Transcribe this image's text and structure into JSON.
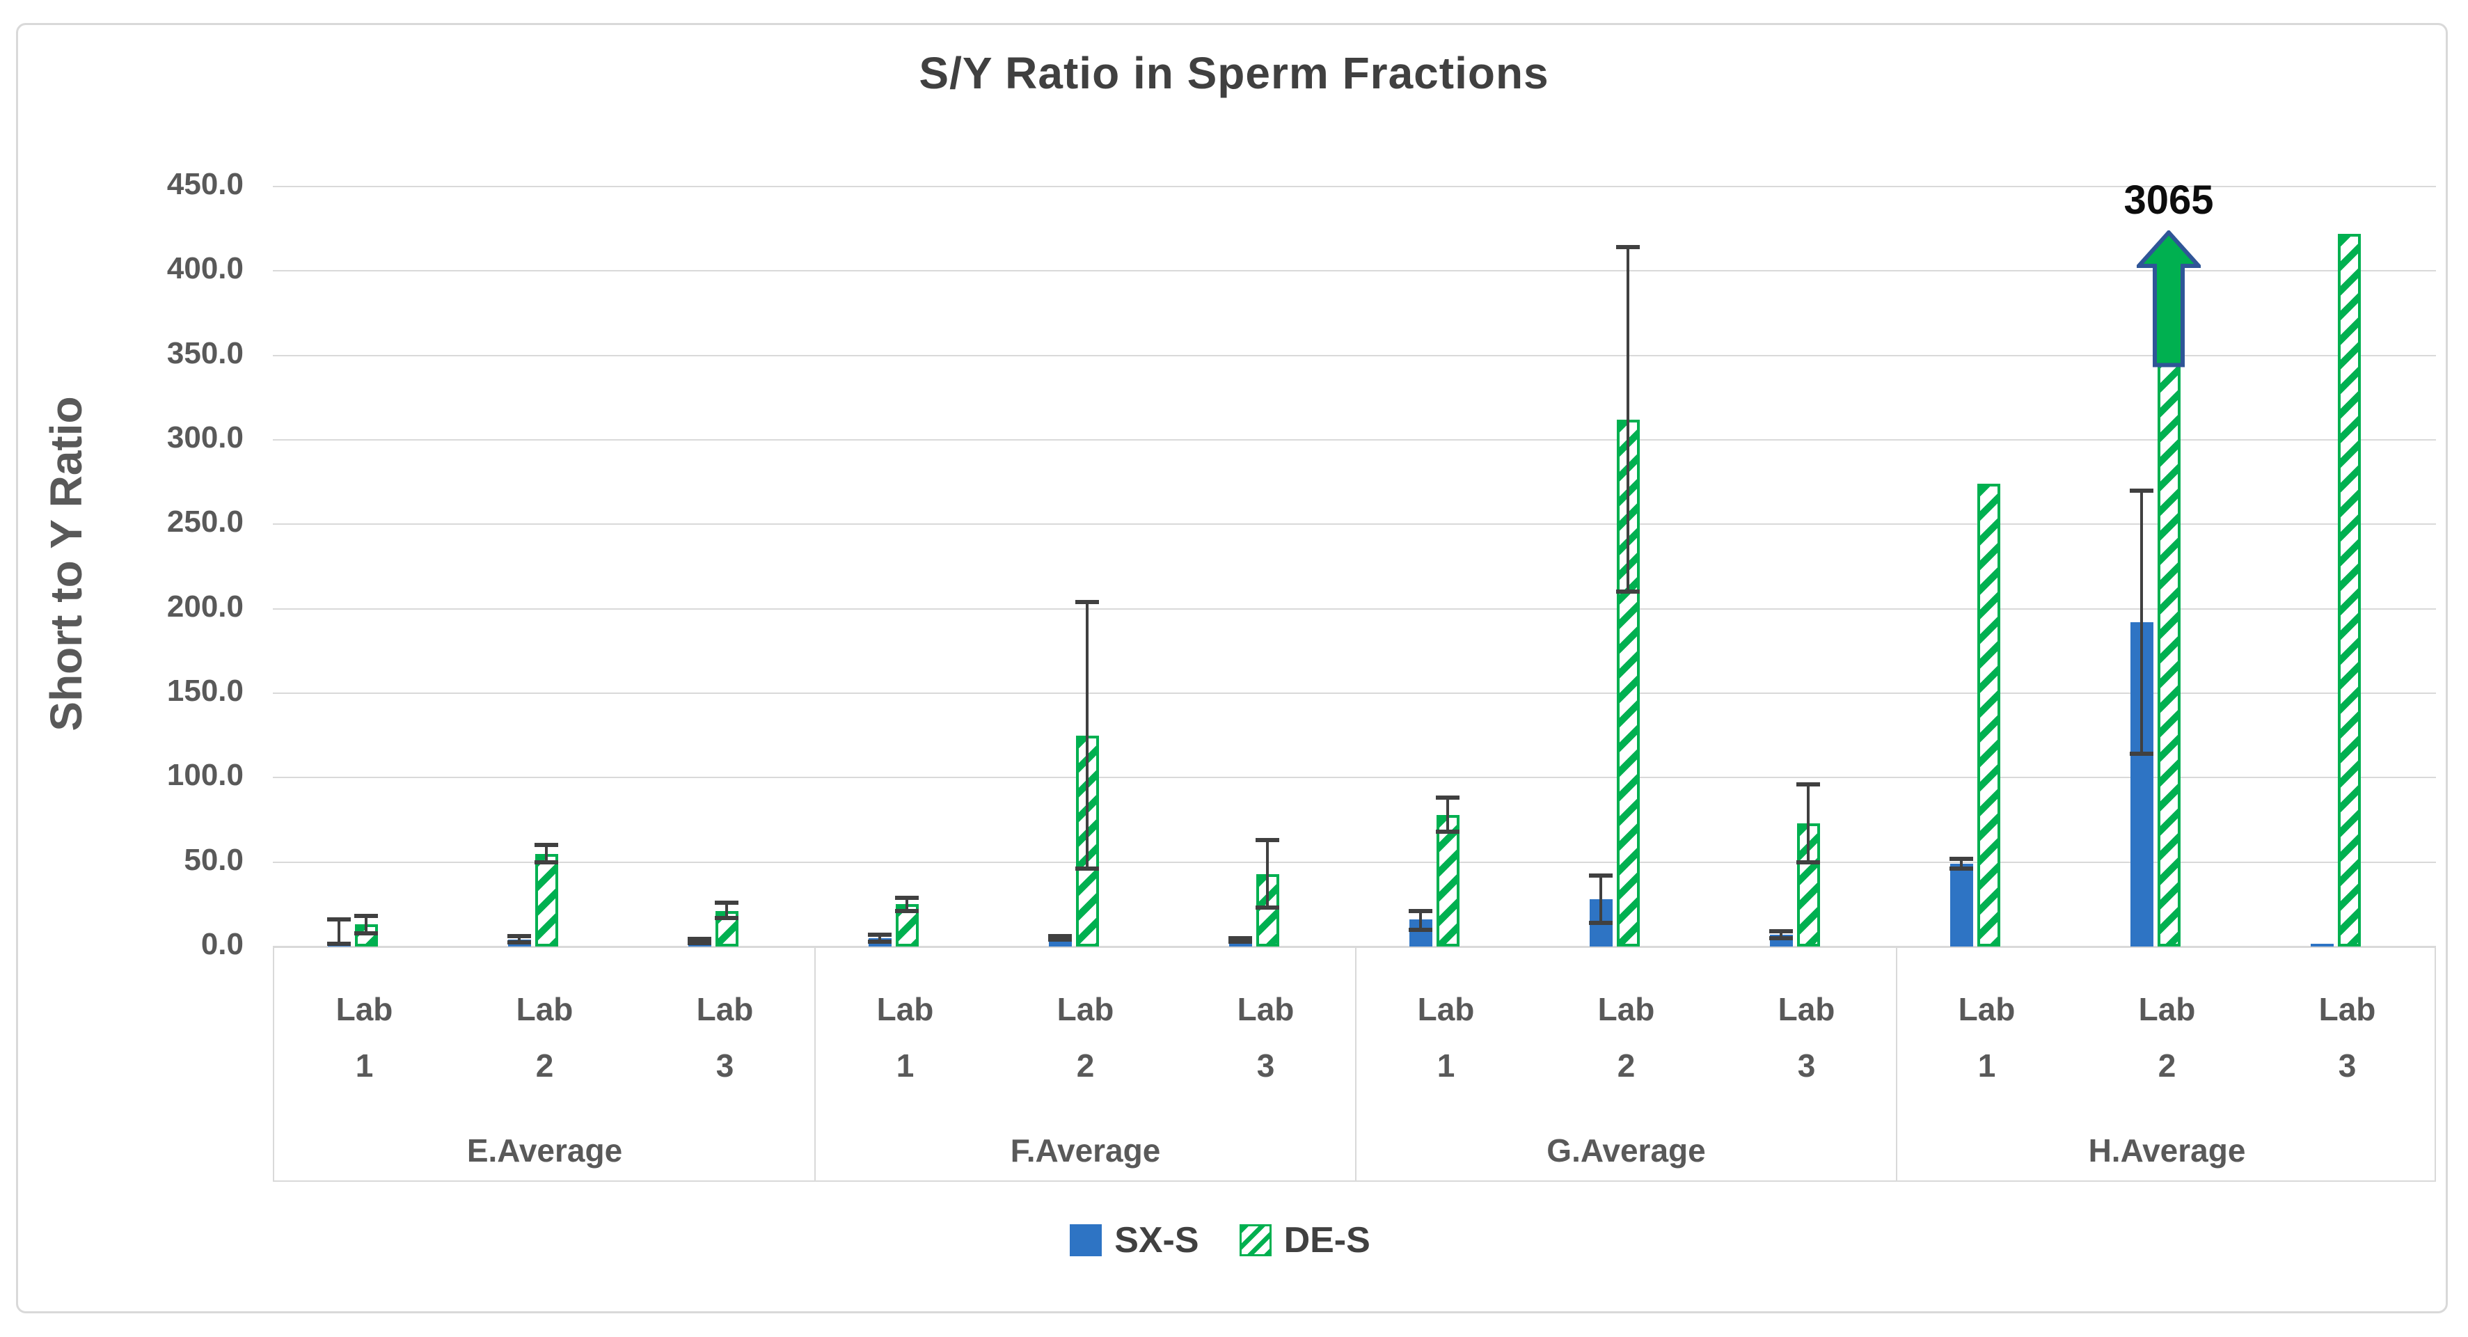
{
  "window": {
    "background_color": "#FFFFFF",
    "frame_border_color": "#D9D9D9"
  },
  "chart_data": {
    "type": "bar",
    "title": "S/Y Ratio in Sperm Fractions",
    "xlabel": "",
    "ylabel": "Short to Y Ratio",
    "ylim": [
      0,
      450
    ],
    "ytick_step": 50,
    "ytick_labels": [
      "0.0",
      "50.0",
      "100.0",
      "150.0",
      "200.0",
      "250.0",
      "300.0",
      "350.0",
      "400.0",
      "450.0"
    ],
    "grid": true,
    "gridline_color": "#D9D9D9",
    "legend_position": "bottom",
    "group_labels": [
      "E.Average",
      "F.Average",
      "G.Average",
      "H.Average"
    ],
    "lab_labels": [
      "Lab 1",
      "Lab 2",
      "Lab 3"
    ],
    "categories": [
      "Lab 1",
      "Lab 2",
      "Lab 3",
      "Lab 1",
      "Lab 2",
      "Lab 3",
      "Lab 1",
      "Lab 2",
      "Lab 3",
      "Lab 1",
      "Lab 2",
      "Lab 3"
    ],
    "series": [
      {
        "name": "SX-S",
        "style": "solid",
        "color": "#2E74C4",
        "values": [
          3,
          4,
          3,
          5,
          5,
          4,
          16,
          28,
          7,
          49,
          192,
          1.5
        ],
        "err_hi": [
          16,
          6,
          4.5,
          7,
          6,
          5,
          21,
          42,
          9,
          52,
          270,
          null
        ],
        "err_lo": [
          1.5,
          2.5,
          2,
          3,
          4,
          3,
          10,
          14,
          5,
          46,
          114,
          null
        ]
      },
      {
        "name": "DE-S",
        "style": "hatched",
        "color": "#00B050",
        "values": [
          13,
          55,
          21,
          25,
          125,
          43,
          78,
          312,
          73,
          274,
          3065,
          422
        ],
        "err_hi": [
          18,
          60,
          26,
          29,
          204,
          63,
          88,
          414,
          96,
          null,
          null,
          null
        ],
        "err_lo": [
          8,
          50,
          17,
          21,
          46,
          23,
          68,
          210,
          50,
          null,
          null,
          null
        ]
      }
    ],
    "error_bar_color": "#404040",
    "annotation": {
      "text": "3065",
      "series": "DE-S",
      "category_index": 10,
      "arrow": true,
      "arrow_fill": "#00B050",
      "arrow_outline": "#2F5597",
      "arrow_top_value": 424,
      "arrow_bottom_value": 343,
      "bar_drawn_top_value": 350
    }
  }
}
